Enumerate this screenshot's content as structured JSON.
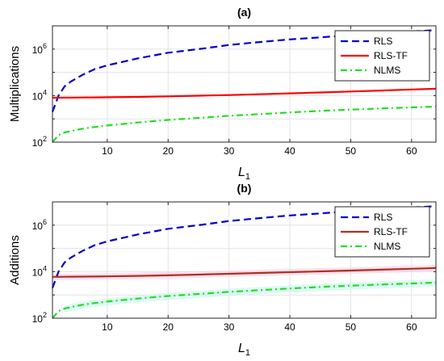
{
  "chart_data": [
    {
      "panel": "(a)",
      "type": "line",
      "title": "(a)",
      "xlabel": "L",
      "xlabel_subscript": "1",
      "ylabel": "Multiplications",
      "xlim": [
        1,
        64
      ],
      "ylim_log10": [
        2,
        7
      ],
      "yscale": "log",
      "xticks": [
        "10",
        "20",
        "30",
        "40",
        "50",
        "60"
      ],
      "yticks": [
        {
          "base": "10",
          "exp": "2"
        },
        {
          "base": "10",
          "exp": "4"
        },
        {
          "base": "10",
          "exp": "6"
        }
      ],
      "grid": true,
      "legend_position": "top-right",
      "x": [
        1,
        2,
        3,
        4,
        6,
        8,
        10,
        15,
        20,
        25,
        30,
        35,
        40,
        45,
        50,
        55,
        60,
        64
      ],
      "series": [
        {
          "name": "RLS",
          "color": "#0000cc",
          "style": "dashed",
          "values": [
            2000,
            10000,
            25000,
            40000,
            80000,
            140000,
            200000,
            400000,
            700000,
            1000000,
            1500000,
            2000000,
            2600000,
            3200000,
            4000000,
            4800000,
            5800000,
            6500000
          ]
        },
        {
          "name": "RLS-TF",
          "color": "#ff0000",
          "style": "solid",
          "values": [
            8100,
            8100,
            8200,
            8200,
            8300,
            8400,
            8500,
            8800,
            9300,
            9900,
            10600,
            11500,
            12500,
            13700,
            15000,
            16500,
            18300,
            19800
          ]
        },
        {
          "name": "NLMS",
          "color": "#22dd22",
          "style": "dashdot",
          "values": [
            100,
            200,
            260,
            300,
            380,
            450,
            520,
            700,
            900,
            1100,
            1350,
            1600,
            1900,
            2200,
            2500,
            2800,
            3100,
            3400
          ]
        }
      ]
    },
    {
      "panel": "(b)",
      "type": "line",
      "title": "(b)",
      "xlabel": "L",
      "xlabel_subscript": "1",
      "ylabel": "Additions",
      "xlim": [
        1,
        64
      ],
      "ylim_log10": [
        2,
        7
      ],
      "yscale": "log",
      "xticks": [
        "10",
        "20",
        "30",
        "40",
        "50",
        "60"
      ],
      "yticks": [
        {
          "base": "10",
          "exp": "2"
        },
        {
          "base": "10",
          "exp": "4"
        },
        {
          "base": "10",
          "exp": "6"
        }
      ],
      "grid": true,
      "legend_position": "top-right",
      "x": [
        1,
        2,
        3,
        4,
        6,
        8,
        10,
        15,
        20,
        25,
        30,
        35,
        40,
        45,
        50,
        55,
        60,
        64
      ],
      "series": [
        {
          "name": "RLS",
          "color": "#0000cc",
          "style": "dashed",
          "values": [
            2000,
            10000,
            25000,
            40000,
            80000,
            140000,
            200000,
            400000,
            700000,
            1000000,
            1500000,
            2000000,
            2600000,
            3200000,
            4000000,
            4800000,
            5800000,
            6500000
          ]
        },
        {
          "name": "RLS-TF",
          "color": "#b03020",
          "style": "solid",
          "values": [
            6000,
            6000,
            6050,
            6100,
            6150,
            6200,
            6300,
            6600,
            7000,
            7500,
            8100,
            8800,
            9500,
            10300,
            11200,
            12200,
            13300,
            14300
          ]
        },
        {
          "name": "NLMS",
          "color": "#22dd22",
          "style": "dashdot",
          "values": [
            100,
            200,
            260,
            300,
            380,
            450,
            520,
            700,
            900,
            1100,
            1350,
            1600,
            1900,
            2200,
            2500,
            2800,
            3100,
            3400
          ]
        }
      ]
    }
  ]
}
